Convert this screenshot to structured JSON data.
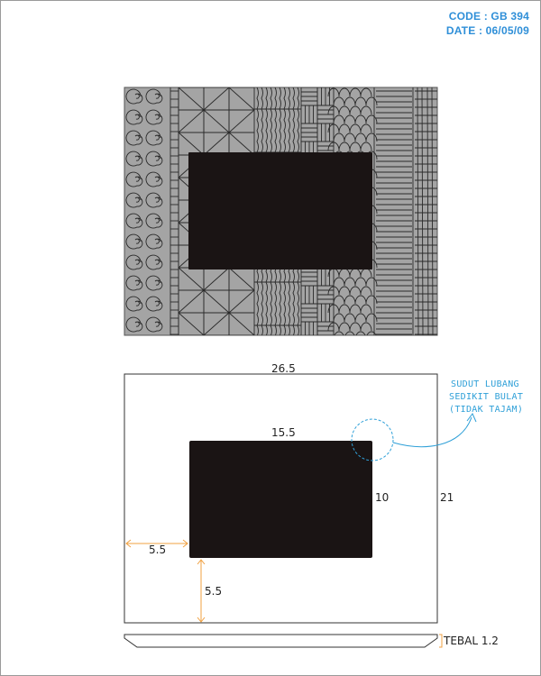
{
  "header": {
    "code": "CODE : GB 394",
    "date": "DATE : 06/05/09"
  },
  "drawing": {
    "outer_width": "26.5",
    "outer_height": "21",
    "hole_width": "15.5",
    "hole_height": "10",
    "left_margin": "5.5",
    "bottom_margin": "5.5",
    "thickness": "TEBAL 1.2",
    "note_lines": [
      "SUDUT LUBANG",
      "SEDIKIT BULAT",
      "(TIDAK TAJAM)"
    ]
  },
  "colors": {
    "frame_fill": "#a4a4a4",
    "hole_fill": "#1a1414",
    "dimension_arrow": "#f0a040",
    "note": "#2fa0d8",
    "header": "#2f8fd8"
  }
}
